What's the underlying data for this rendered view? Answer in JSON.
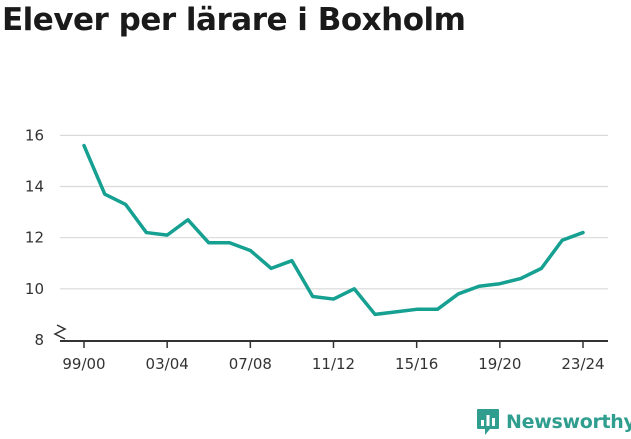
{
  "chart_data": {
    "type": "line",
    "title": "Elever per lärare i Boxholm",
    "xlabel": "",
    "ylabel": "",
    "x_tick_labels": [
      "99/00",
      "03/04",
      "07/08",
      "11/12",
      "15/16",
      "19/20",
      "23/24"
    ],
    "x_tick_indices": [
      0,
      4,
      8,
      12,
      16,
      20,
      24
    ],
    "y_ticks": [
      8,
      10,
      12,
      14,
      16
    ],
    "ylim": [
      8,
      16.6
    ],
    "y_axis_break": true,
    "grid": true,
    "colors": {
      "line": "#16a091",
      "grid": "#d9d9d9",
      "axis": "#333333"
    },
    "categories": [
      "99/00",
      "00/01",
      "01/02",
      "02/03",
      "03/04",
      "04/05",
      "05/06",
      "06/07",
      "07/08",
      "08/09",
      "09/10",
      "10/11",
      "11/12",
      "12/13",
      "13/14",
      "14/15",
      "15/16",
      "16/17",
      "17/18",
      "18/19",
      "19/20",
      "20/21",
      "21/22",
      "22/23",
      "23/24"
    ],
    "values": [
      15.6,
      13.7,
      13.3,
      12.2,
      12.1,
      12.7,
      11.8,
      11.8,
      11.5,
      10.8,
      11.1,
      9.7,
      9.6,
      10.0,
      9.0,
      9.1,
      9.2,
      9.2,
      9.8,
      10.1,
      10.2,
      10.4,
      10.8,
      11.9,
      12.2
    ]
  },
  "brand": {
    "name": "Newsworthy",
    "icon": "newsworthy-logo-icon"
  }
}
